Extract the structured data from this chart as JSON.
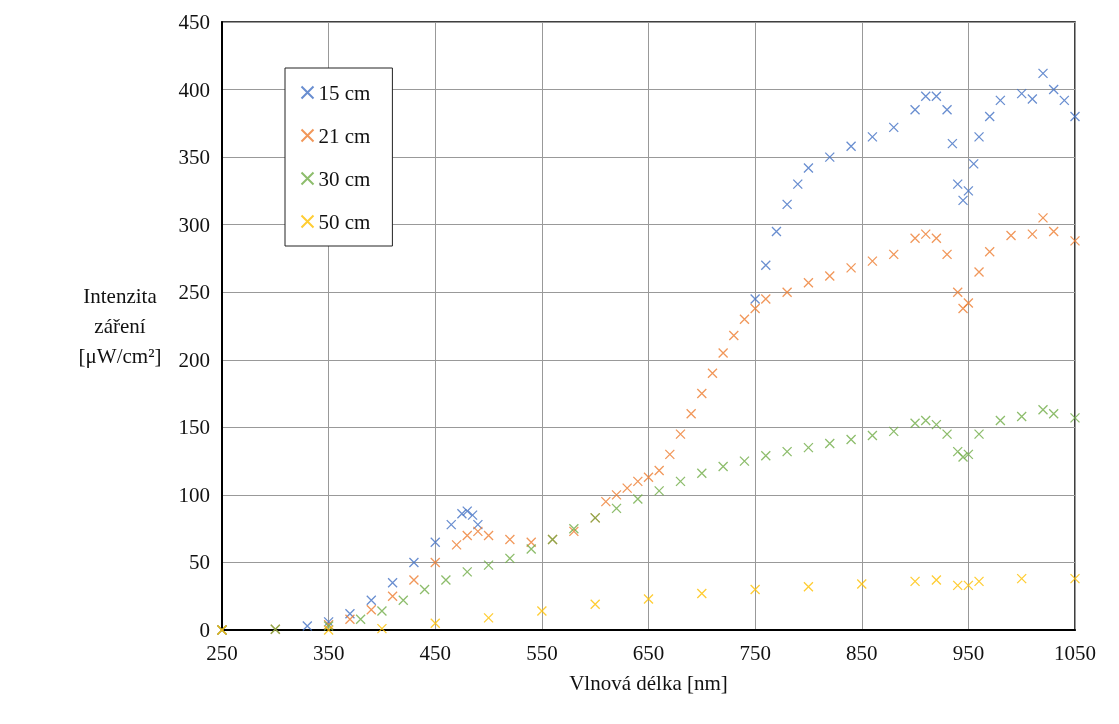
{
  "chart_data": {
    "type": "scatter",
    "xlabel": "Vlnová délka [nm]",
    "ylabel": "Intenzita záření [μW/cm²]",
    "xlim": [
      250,
      1050
    ],
    "xticks": [
      250,
      350,
      450,
      550,
      650,
      750,
      850,
      950,
      1050
    ],
    "ylim": [
      0,
      450
    ],
    "yticks": [
      0,
      50,
      100,
      150,
      200,
      250,
      300,
      350,
      400,
      450
    ],
    "grid": true,
    "legend": "top left",
    "marker": "cross",
    "series": [
      {
        "name": "15 cm",
        "color": "#4472c4",
        "x": [
          250,
          300,
          330,
          350,
          370,
          390,
          410,
          430,
          450,
          465,
          475,
          480,
          485,
          490,
          750,
          760,
          770,
          780,
          790,
          800,
          820,
          840,
          860,
          880,
          900,
          910,
          920,
          930,
          935,
          940,
          945,
          950,
          955,
          960,
          970,
          980,
          1000,
          1010,
          1020,
          1030,
          1040,
          1050
        ],
        "values": [
          0,
          null,
          3,
          6,
          12,
          22,
          35,
          50,
          65,
          78,
          86,
          88,
          85,
          78,
          245,
          270,
          295,
          315,
          330,
          342,
          350,
          358,
          365,
          372,
          385,
          395,
          395,
          385,
          360,
          330,
          318,
          325,
          345,
          365,
          380,
          392,
          397,
          393,
          412,
          400,
          392,
          380
        ]
      },
      {
        "name": "21 cm",
        "color": "#ed7d31",
        "x": [
          250,
          300,
          350,
          370,
          390,
          410,
          430,
          450,
          470,
          480,
          490,
          500,
          520,
          540,
          560,
          580,
          600,
          610,
          620,
          630,
          640,
          650,
          660,
          670,
          680,
          690,
          700,
          710,
          720,
          730,
          740,
          750,
          760,
          780,
          800,
          820,
          840,
          860,
          880,
          900,
          910,
          920,
          930,
          940,
          945,
          950,
          960,
          970,
          990,
          1010,
          1020,
          1030,
          1050
        ],
        "values": [
          0,
          0.5,
          4,
          8,
          15,
          25,
          37,
          50,
          63,
          70,
          73,
          70,
          67,
          65,
          67,
          73,
          83,
          95,
          100,
          105,
          110,
          113,
          118,
          130,
          145,
          160,
          175,
          190,
          205,
          218,
          230,
          238,
          245,
          250,
          257,
          262,
          268,
          273,
          278,
          290,
          293,
          290,
          278,
          250,
          238,
          242,
          265,
          280,
          292,
          293,
          305,
          295,
          288
        ]
      },
      {
        "name": "30 cm",
        "color": "#70ad47",
        "x": [
          250,
          300,
          350,
          380,
          400,
          420,
          440,
          460,
          480,
          500,
          520,
          540,
          560,
          580,
          600,
          620,
          640,
          660,
          680,
          700,
          720,
          740,
          760,
          780,
          800,
          820,
          840,
          860,
          880,
          900,
          910,
          920,
          930,
          940,
          945,
          950,
          960,
          980,
          1000,
          1020,
          1030,
          1050
        ],
        "values": [
          0,
          0.5,
          3,
          8,
          14,
          22,
          30,
          37,
          43,
          48,
          53,
          60,
          67,
          75,
          83,
          90,
          97,
          103,
          110,
          116,
          121,
          125,
          129,
          132,
          135,
          138,
          141,
          144,
          147,
          153,
          155,
          152,
          145,
          132,
          128,
          130,
          145,
          155,
          158,
          163,
          160,
          157
        ]
      },
      {
        "name": "50 cm",
        "color": "#ffc000",
        "x": [
          250,
          350,
          400,
          450,
          500,
          550,
          600,
          650,
          700,
          750,
          800,
          850,
          900,
          920,
          940,
          950,
          960,
          1000,
          1050
        ],
        "values": [
          0,
          0,
          1,
          5,
          9,
          14,
          19,
          23,
          27,
          30,
          32,
          34,
          36,
          37,
          33,
          33,
          36,
          38,
          38
        ]
      }
    ]
  }
}
